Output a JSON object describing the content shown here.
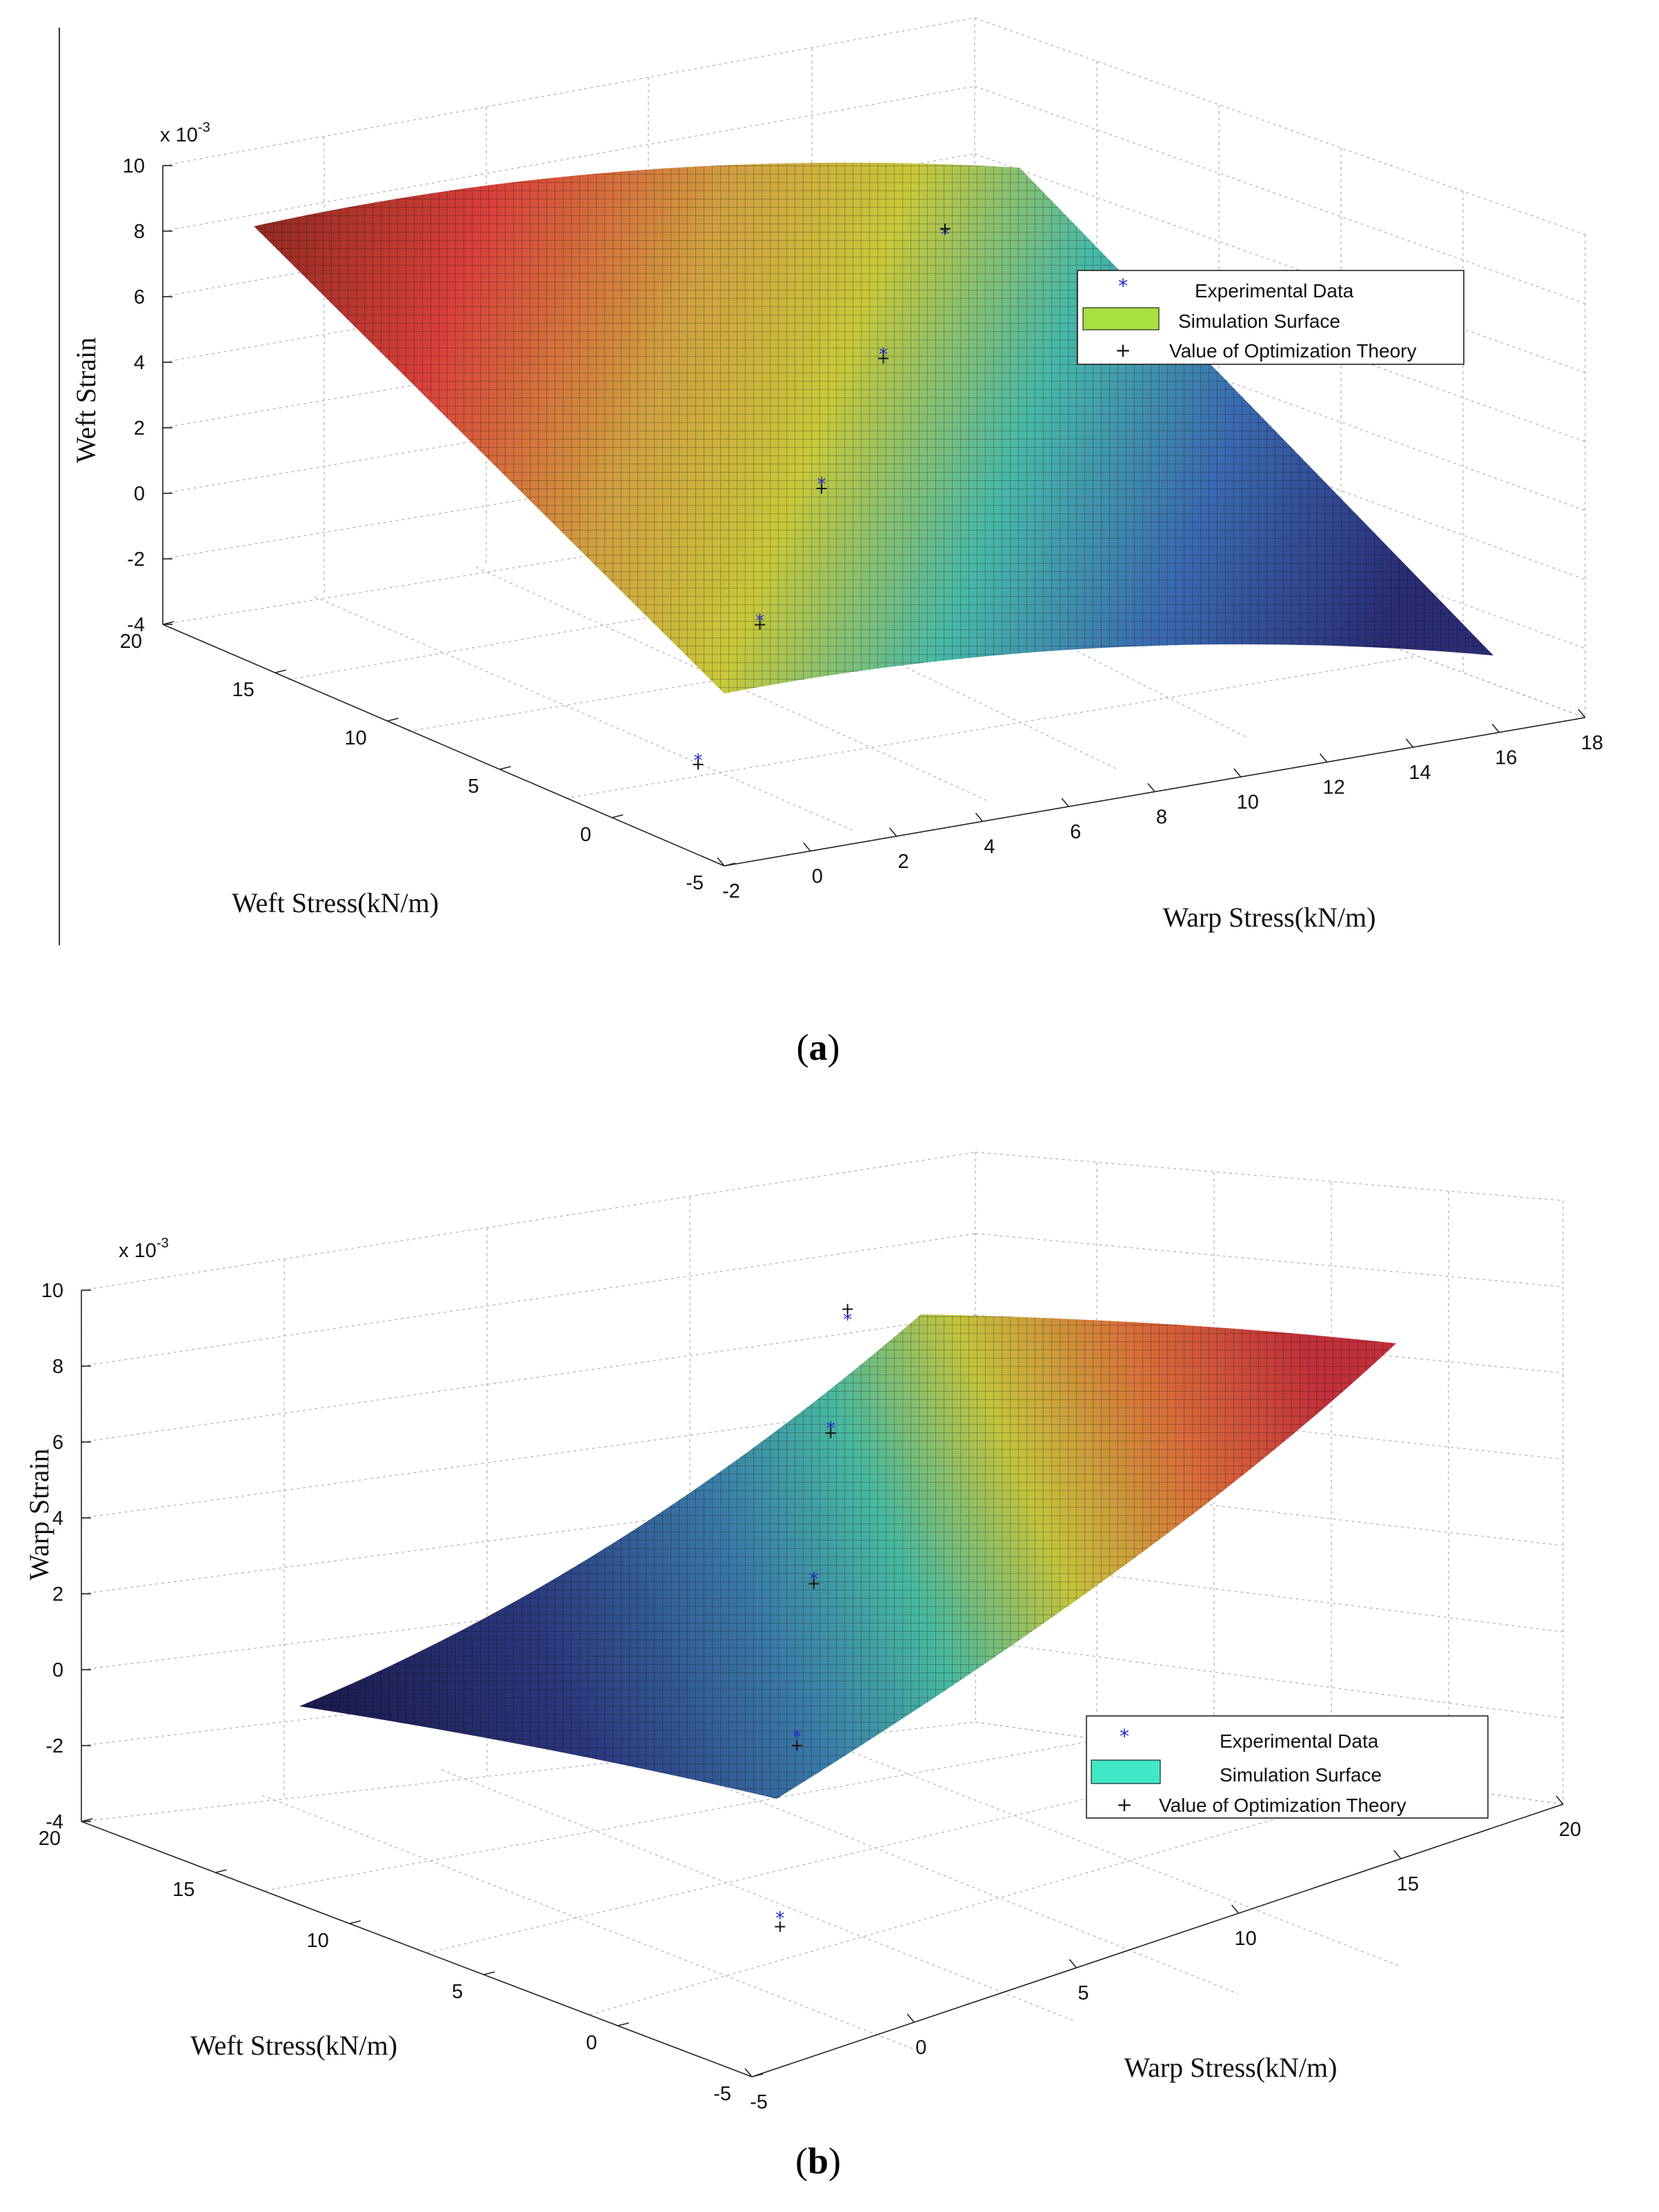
{
  "chart_data": [
    {
      "type": "surface3d",
      "panel": "a",
      "caption": "(a)",
      "zlabel": "Weft Strain",
      "zscale_label": "x 10",
      "zscale_exp": "-3",
      "xlabel": "Warp Stress(kN/m)",
      "ylabel": "Weft Stress(kN/m)",
      "xticks": [
        "-2",
        "0",
        "2",
        "4",
        "6",
        "8",
        "10",
        "12",
        "14",
        "16",
        "18"
      ],
      "yticks": [
        "-5",
        "0",
        "5",
        "10",
        "15",
        "20"
      ],
      "zticks": [
        "-4",
        "-2",
        "0",
        "2",
        "4",
        "6",
        "8",
        "10"
      ],
      "xlim": [
        -2,
        18
      ],
      "ylim": [
        -5,
        20
      ],
      "zlim": [
        -4,
        10
      ],
      "surface_corners": {
        "warp_min_weft_max": 8.4,
        "warp_max_weft_max": 9.9,
        "warp_max_weft_min": -4.0,
        "warp_min_weft_min": -2.8
      },
      "legend": [
        {
          "label": "Experimental Data",
          "marker": "*",
          "color": "#2222cc"
        },
        {
          "label": "Simulation Surface",
          "color": "#a8e040"
        },
        {
          "label": "Value of Optimization Theory",
          "marker": "+",
          "color": "#111111"
        }
      ],
      "series": [
        {
          "name": "Experimental Data",
          "points": [
            [
              0,
              0,
              -2.7
            ],
            [
              3,
              3,
              0.0
            ],
            [
              6,
              6,
              2.6
            ],
            [
              9,
              9,
              5.0
            ],
            [
              12,
              12,
              7.1
            ]
          ]
        },
        {
          "name": "Value of Optimization Theory",
          "points": [
            [
              0,
              0,
              -2.8
            ],
            [
              3,
              3,
              -0.1
            ],
            [
              6,
              6,
              2.5
            ],
            [
              9,
              9,
              4.9
            ],
            [
              12,
              12,
              7.3
            ]
          ]
        }
      ]
    },
    {
      "type": "surface3d",
      "panel": "b",
      "caption": "(b)",
      "zlabel": "Warp Strain",
      "zscale_label": "x 10",
      "zscale_exp": "-3",
      "xlabel": "Warp Stress(kN/m)",
      "ylabel": "Weft Stress(kN/m)",
      "xticks": [
        "-5",
        "0",
        "5",
        "10",
        "15",
        "20"
      ],
      "yticks": [
        "-5",
        "0",
        "5",
        "10",
        "15",
        "20"
      ],
      "zticks": [
        "-4",
        "-2",
        "0",
        "2",
        "4",
        "6",
        "8",
        "10"
      ],
      "xlim": [
        -5,
        20
      ],
      "ylim": [
        -5,
        20
      ],
      "zlim": [
        -4,
        10
      ],
      "surface_corners": {
        "warp_min_weft_max": -2.3,
        "warp_max_weft_max": 9.0,
        "warp_max_weft_min": 8.6,
        "warp_min_weft_min": -2.8
      },
      "legend": [
        {
          "label": "Experimental Data",
          "marker": "*",
          "color": "#2222cc"
        },
        {
          "label": "Simulation Surface",
          "color": "#40e8c8"
        },
        {
          "label": "Value of Optimization Theory",
          "marker": "+",
          "color": "#111111"
        }
      ],
      "series": [
        {
          "name": "Experimental Data",
          "points": [
            [
              0,
              0,
              -2.6
            ],
            [
              3,
              3,
              0.5
            ],
            [
              6,
              6,
              3.0
            ],
            [
              9,
              9,
              5.3
            ],
            [
              12,
              12,
              6.5
            ]
          ]
        },
        {
          "name": "Value of Optimization Theory",
          "points": [
            [
              0,
              0,
              -2.8
            ],
            [
              3,
              3,
              0.3
            ],
            [
              6,
              6,
              2.9
            ],
            [
              9,
              9,
              5.2
            ],
            [
              12,
              12,
              6.8
            ]
          ]
        }
      ]
    }
  ]
}
